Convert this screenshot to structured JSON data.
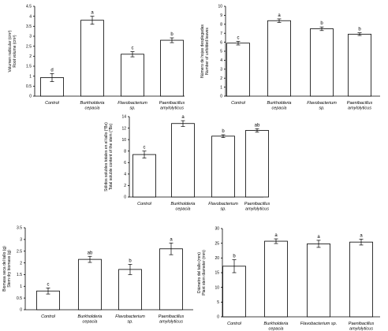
{
  "chart_data": [
    {
      "type": "bar",
      "ylabel": [
        "Volumen radicular (cm³)",
        "Root volume (cm³)"
      ],
      "categories": [
        [
          "Control"
        ],
        [
          "Burkholderia",
          "cepacia"
        ],
        [
          "Flavobacterium",
          "sp."
        ],
        [
          "Paenibacillus",
          "amylolyticus"
        ]
      ],
      "values": [
        0.93,
        3.8,
        2.1,
        2.8
      ],
      "errors": [
        0.2,
        0.2,
        0.13,
        0.12
      ],
      "letters": [
        "d",
        "a",
        "c",
        "b"
      ],
      "ylim": [
        0,
        4.5
      ],
      "yticks": [
        0,
        0.5,
        1,
        1.5,
        2,
        2.5,
        3,
        3.5,
        4,
        4.5
      ],
      "ytick_labels": [
        "0",
        "0.5",
        "1",
        "1.5",
        "2",
        "2.5",
        "3",
        "3.5",
        "4",
        "4.5"
      ]
    },
    {
      "type": "bar",
      "ylabel": [
        "Número de hojas desplegadas",
        "Number of unfolded leaves"
      ],
      "categories": [
        [
          "Control"
        ],
        [
          "Burkholderia",
          "cepacia"
        ],
        [
          "Flavobacterium",
          "sp."
        ],
        [
          "Paenibacillus",
          "amylolyticus"
        ]
      ],
      "values": [
        5.9,
        8.4,
        7.5,
        6.9
      ],
      "errors": [
        0.2,
        0.2,
        0.2,
        0.15
      ],
      "letters": [
        "c",
        "a",
        "b",
        "b"
      ],
      "ylim": [
        0,
        10
      ],
      "yticks": [
        0,
        1,
        2,
        3,
        4,
        5,
        6,
        7,
        8,
        9,
        10
      ],
      "ytick_labels": [
        "0",
        "1",
        "2",
        "3",
        "4",
        "5",
        "6",
        "7",
        "8",
        "9",
        "10"
      ]
    },
    {
      "type": "bar",
      "ylabel": [
        "Sólidos solubles totales en el tallo (°Bx)",
        "Total soluble content of the stem (°Bx)"
      ],
      "categories": [
        [
          "Control"
        ],
        [
          "Burkholderia",
          "cepacia"
        ],
        [
          "Flavobacterium",
          "sp."
        ],
        [
          "Paenibacillus",
          "amylolyticus"
        ]
      ],
      "values": [
        7.4,
        12.8,
        10.6,
        11.6
      ],
      "errors": [
        0.6,
        0.5,
        0.25,
        0.3
      ],
      "letters": [
        "c",
        "a",
        "b",
        "ab"
      ],
      "ylim": [
        0,
        14
      ],
      "yticks": [
        0,
        2,
        4,
        6,
        8,
        10,
        12,
        14
      ],
      "ytick_labels": [
        "0",
        "2",
        "4",
        "6",
        "8",
        "10",
        "12",
        "14"
      ]
    },
    {
      "type": "bar",
      "ylabel": [
        "Biomasa seca del tallo (g)",
        "Stem dry biomass (g)"
      ],
      "categories": [
        [
          "Control"
        ],
        [
          "Burkholderia",
          "cepacia"
        ],
        [
          "Flavobacterium",
          "sp."
        ],
        [
          "Paenibacillus",
          "amylolyticus"
        ]
      ],
      "values": [
        0.8,
        2.15,
        1.72,
        2.6
      ],
      "errors": [
        0.13,
        0.13,
        0.22,
        0.25
      ],
      "letters": [
        "c",
        "ab",
        "b",
        "a"
      ],
      "ylim": [
        0,
        3.5
      ],
      "yticks": [
        0,
        0.5,
        1,
        1.5,
        2,
        2.5,
        3,
        3.5
      ],
      "ytick_labels": [
        "0",
        "0.5",
        "1",
        "1.5",
        "2",
        "2.5",
        "3",
        "3.5"
      ]
    },
    {
      "type": "bar",
      "ylabel": [
        "Diámetro del tallo (mm)",
        "Plant stem diameter (mm)"
      ],
      "categories": [
        [
          "Control"
        ],
        [
          "Burkholderia",
          "cepacia"
        ],
        [
          "Flavobacterium sp."
        ],
        [
          "Paenibacillus",
          "amylolyticus"
        ]
      ],
      "values": [
        17.2,
        25.7,
        24.8,
        25.4
      ],
      "errors": [
        2.2,
        0.8,
        1.2,
        1.0
      ],
      "letters": [
        "b",
        "a",
        "a",
        "a"
      ],
      "ylim": [
        0,
        30
      ],
      "yticks": [
        0,
        5,
        10,
        15,
        20,
        25,
        30
      ],
      "ytick_labels": [
        "0",
        "5",
        "10",
        "15",
        "20",
        "25",
        "30"
      ]
    }
  ]
}
